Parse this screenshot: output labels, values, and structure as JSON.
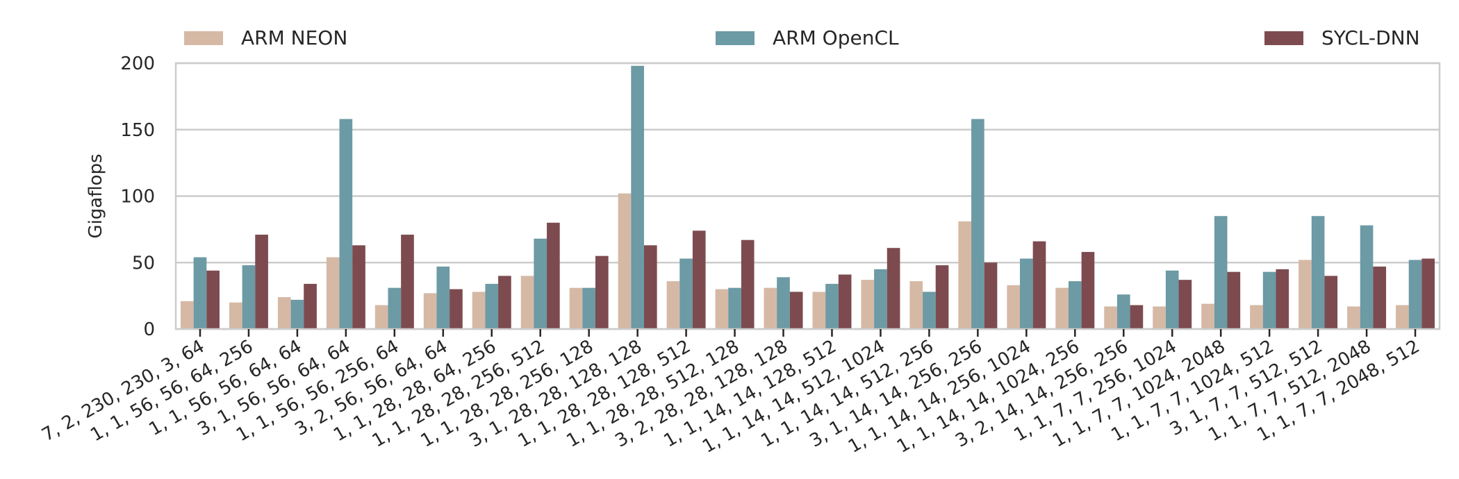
{
  "chart_data": {
    "type": "bar",
    "ylabel": "Gigaflops",
    "xlabel": "",
    "ylim": [
      0,
      200
    ],
    "yticks": [
      0,
      50,
      100,
      150,
      200
    ],
    "grid": "horizontal",
    "legend_position": "top",
    "categories": [
      "7, 2, 230, 230, 3, 64",
      "1, 1, 56, 56, 64, 256",
      "1, 1, 56, 56, 64, 64",
      "3, 1, 56, 56, 64, 64",
      "1, 1, 56, 56, 256, 64",
      "3, 2, 56, 56, 64, 64",
      "1, 1, 28, 28, 64, 256",
      "1, 1, 28, 28, 256, 512",
      "1, 1, 28, 28, 256, 128",
      "3, 1, 28, 28, 128, 128",
      "1, 1, 28, 28, 128, 512",
      "1, 1, 28, 28, 512, 128",
      "3, 2, 28, 28, 128, 128",
      "1, 1, 14, 14, 128, 512",
      "1, 1, 14, 14, 512, 1024",
      "1, 1, 14, 14, 512, 256",
      "3, 1, 14, 14, 256, 256",
      "1, 1, 14, 14, 256, 1024",
      "1, 1, 14, 14, 1024, 256",
      "3, 2, 14, 14, 256, 256",
      "1, 1, 7, 7, 256, 1024",
      "1, 1, 7, 7, 1024, 2048",
      "1, 1, 7, 7, 1024, 512",
      "3, 1, 7, 7, 512, 512",
      "1, 1, 7, 7, 512, 2048",
      "1, 1, 7, 7, 2048, 512"
    ],
    "series": [
      {
        "name": "ARM NEON",
        "color": "#d5b9a5",
        "values": [
          21,
          20,
          24,
          54,
          18,
          27,
          28,
          40,
          31,
          102,
          36,
          30,
          31,
          28,
          37,
          36,
          81,
          33,
          31,
          17,
          17,
          19,
          18,
          52,
          17,
          18
        ]
      },
      {
        "name": "ARM OpenCL",
        "color": "#6c9aa5",
        "values": [
          54,
          48,
          22,
          158,
          31,
          47,
          34,
          68,
          31,
          198,
          53,
          31,
          39,
          34,
          45,
          28,
          158,
          53,
          36,
          26,
          44,
          85,
          43,
          85,
          78,
          52
        ]
      },
      {
        "name": "SYCL-DNN",
        "color": "#7d4b4f",
        "values": [
          44,
          71,
          34,
          63,
          71,
          30,
          40,
          80,
          55,
          63,
          74,
          67,
          28,
          41,
          61,
          48,
          50,
          66,
          58,
          18,
          37,
          43,
          45,
          40,
          47,
          53
        ]
      }
    ]
  }
}
